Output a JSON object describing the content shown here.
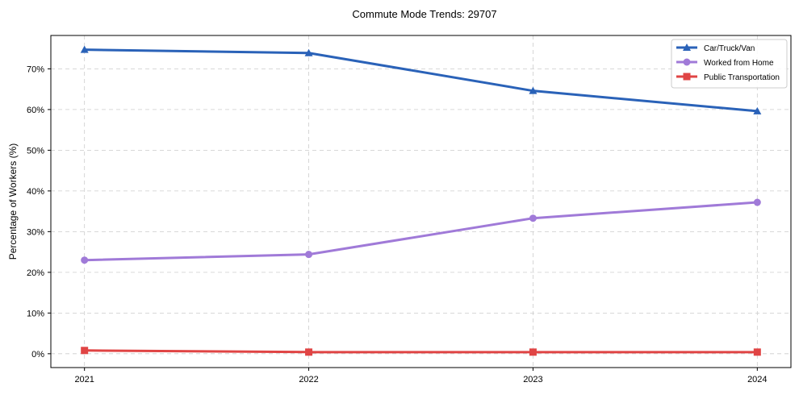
{
  "chart_data": {
    "type": "line",
    "title": "Commute Mode Trends: 29707",
    "xlabel": "",
    "ylabel": "Percentage of Workers (%)",
    "x": [
      2021,
      2022,
      2023,
      2024
    ],
    "x_tick_labels": [
      "2021",
      "2022",
      "2023",
      "2024"
    ],
    "y_ticks": [
      0,
      10,
      20,
      30,
      40,
      50,
      60,
      70
    ],
    "y_tick_labels": [
      "0%",
      "10%",
      "20%",
      "30%",
      "40%",
      "50%",
      "60%",
      "70%"
    ],
    "xlim": [
      2020.85,
      2024.15
    ],
    "ylim": [
      -3.4,
      78.2
    ],
    "grid": true,
    "legend_position": "top-right",
    "series": [
      {
        "name": "Car/Truck/Van",
        "color": "#2a62b8",
        "marker": "triangle",
        "values": [
          74.7,
          73.9,
          64.6,
          59.6
        ]
      },
      {
        "name": "Worked from Home",
        "color": "#a07ad8",
        "marker": "circle",
        "values": [
          23.0,
          24.4,
          33.3,
          37.2
        ]
      },
      {
        "name": "Public Transportation",
        "color": "#e04444",
        "marker": "square",
        "values": [
          0.8,
          0.4,
          0.4,
          0.4
        ]
      }
    ]
  }
}
